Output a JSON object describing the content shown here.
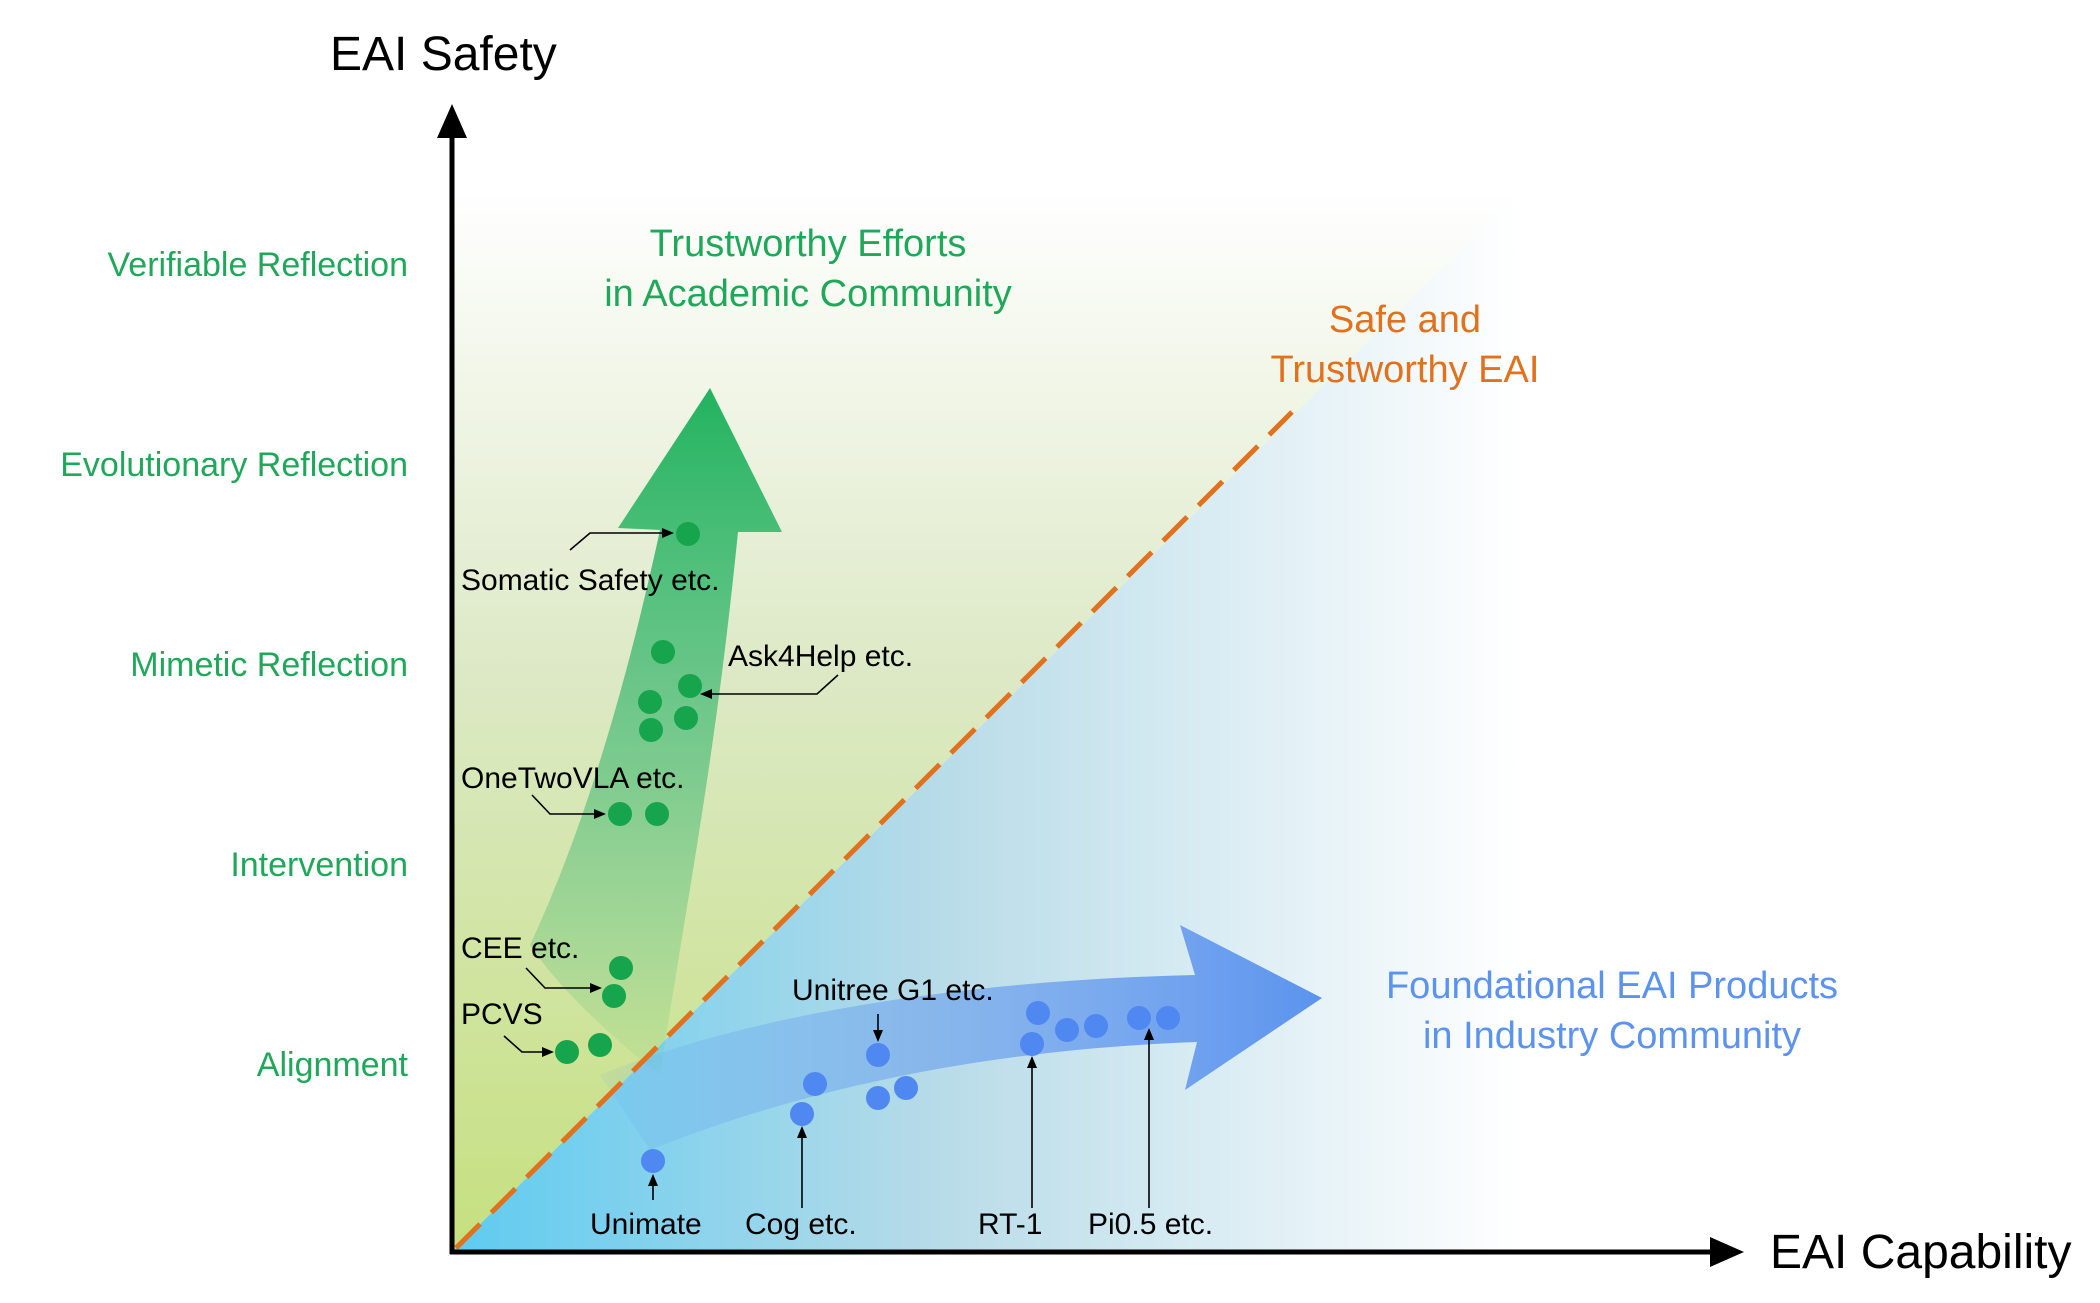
{
  "axes": {
    "y_title": "EAI Safety",
    "x_title": "EAI Capability",
    "y_levels": [
      "Verifiable Reflection",
      "Evolutionary Reflection",
      "Mimetic Reflection",
      "Intervention",
      "Alignment"
    ]
  },
  "regions": {
    "academic_line1": "Trustworthy Efforts",
    "academic_line2": "in Academic Community",
    "industry_line1": "Foundational EAI Products",
    "industry_line2": "in Industry Community",
    "diagonal_line1": "Safe and",
    "diagonal_line2": "Trustworthy EAI"
  },
  "callouts": {
    "somatic": "Somatic Safety etc.",
    "ask4help": "Ask4Help etc.",
    "onetwovla": "OneTwoVLA etc.",
    "cee": "CEE etc.",
    "pcvs": "PCVS",
    "unitree": "Unitree G1 etc.",
    "unimate": "Unimate",
    "cog": "Cog etc.",
    "rt1": "RT-1",
    "pi05": "Pi0.5 etc."
  },
  "colors": {
    "green": "#1fa85a",
    "green_dot": "#16a44c",
    "blue": "#5b93ee",
    "blue_dot": "#4f88f0",
    "orange": "#e2711d"
  }
}
